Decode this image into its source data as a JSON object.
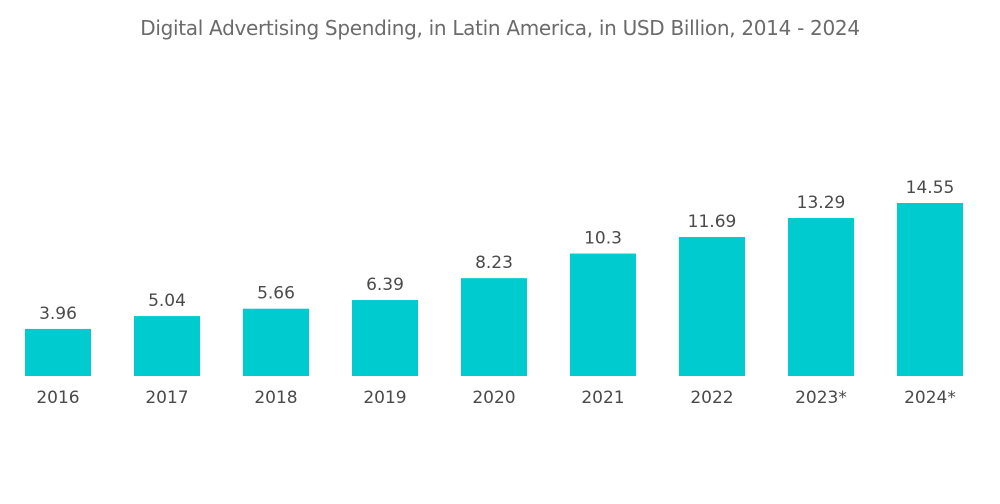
{
  "chart_data": {
    "type": "bar",
    "title": "Digital Advertising Spending, in Latin America, in USD Billion, 2014 - 2024",
    "categories": [
      "2016",
      "2017",
      "2018",
      "2019",
      "2020",
      "2021",
      "2022",
      "2023*",
      "2024*"
    ],
    "values": [
      3.96,
      5.04,
      5.66,
      6.39,
      8.23,
      10.3,
      11.69,
      13.29,
      14.55
    ],
    "value_labels": [
      "3.96",
      "5.04",
      "5.66",
      "6.39",
      "8.23",
      "10.3",
      "11.69",
      "13.29",
      "14.55"
    ],
    "xlabel": "",
    "ylabel": "",
    "ylim": [
      0,
      14.55
    ],
    "grid": false,
    "legend": "none",
    "bar_color": "#00cccf"
  }
}
